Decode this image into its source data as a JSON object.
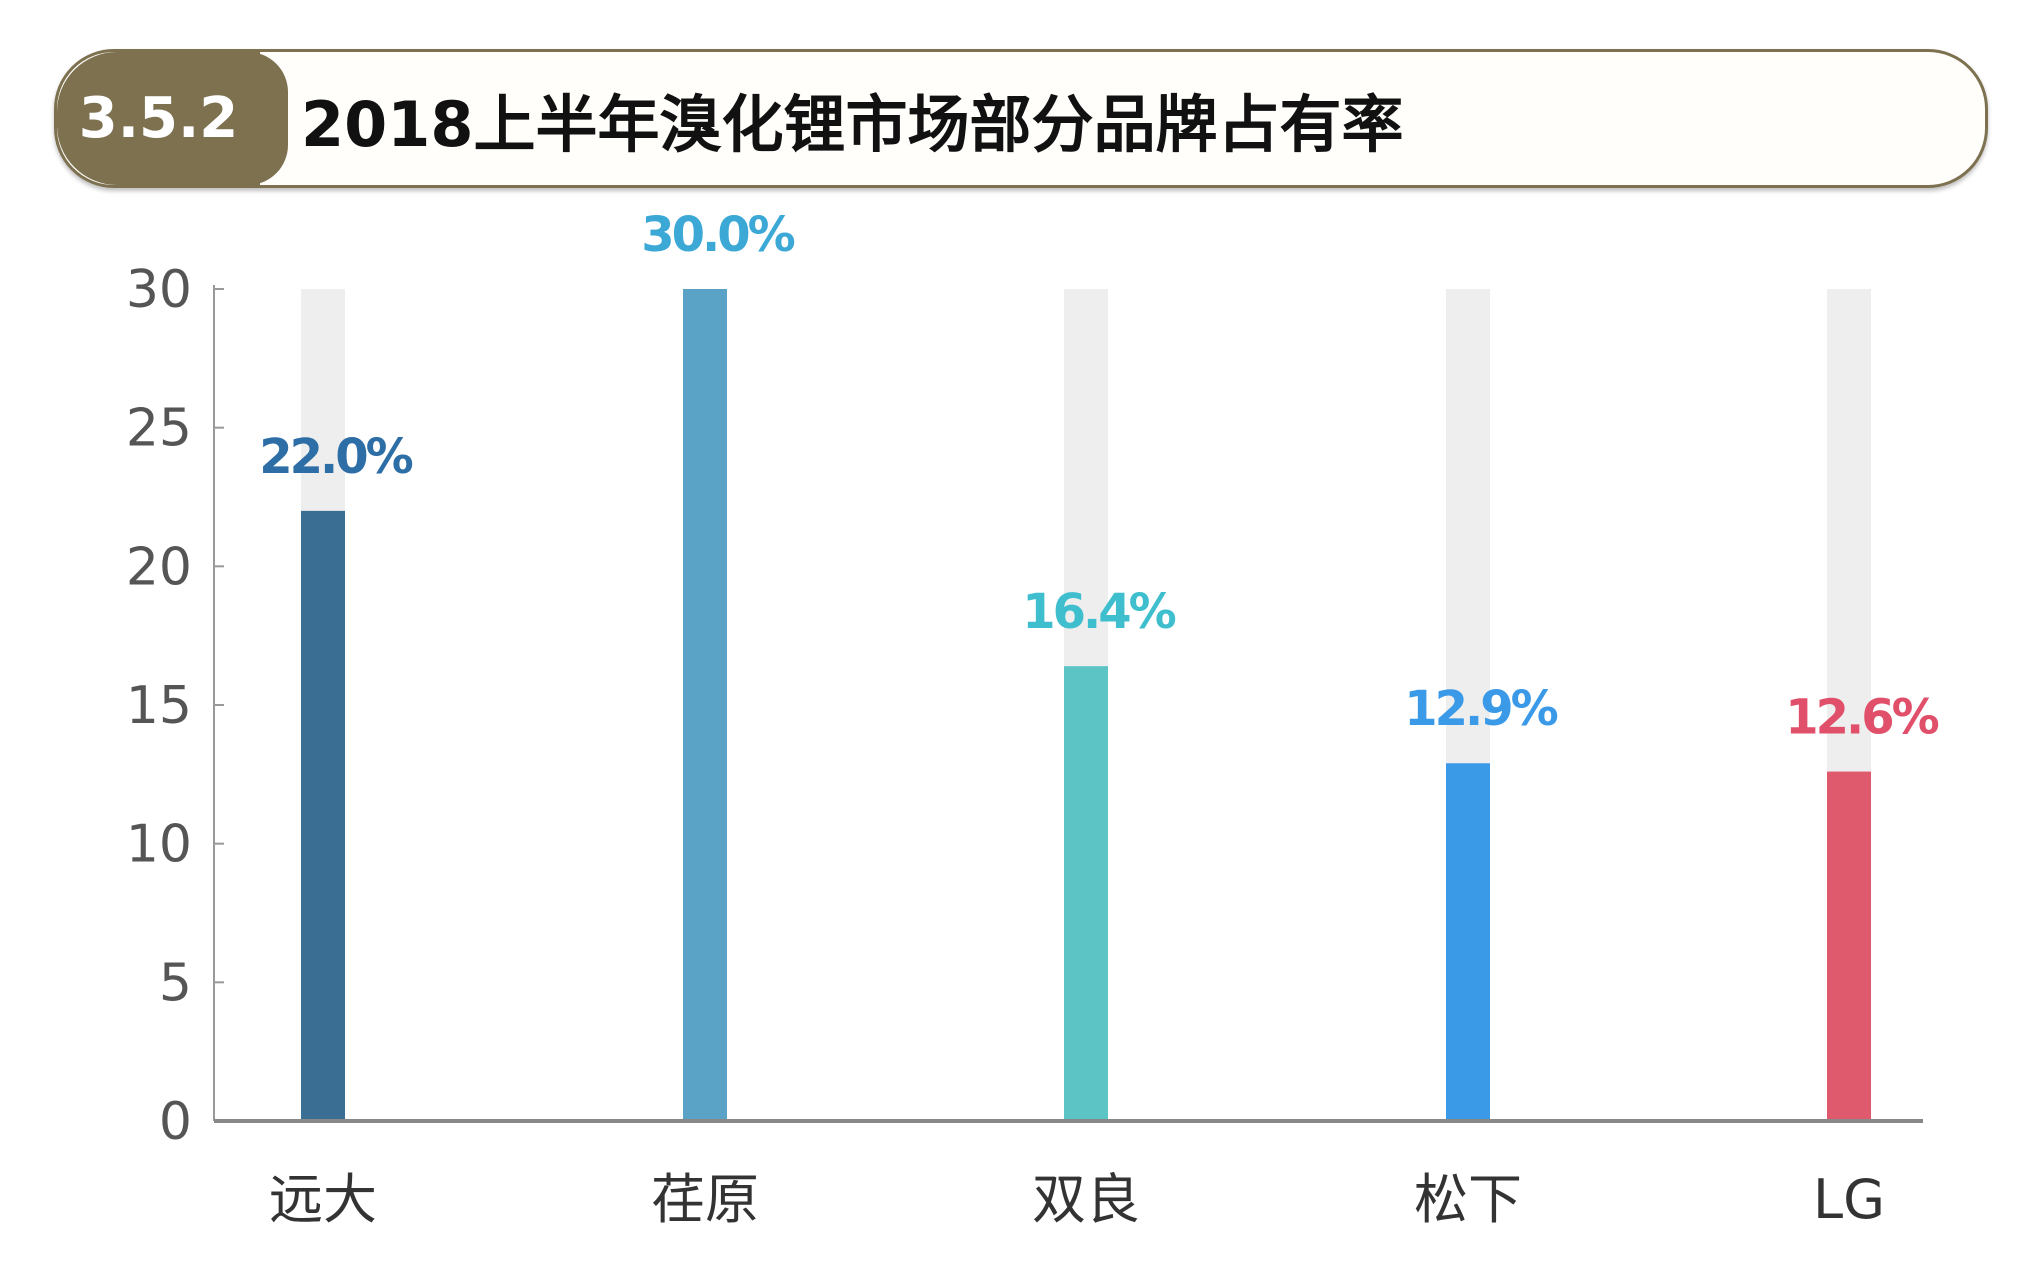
{
  "header": {
    "section_number": "3.5.2",
    "title": "2018上半年溴化锂市场部分品牌占有率"
  },
  "chart_data": {
    "type": "bar",
    "title": "2018上半年溴化锂市场部分品牌占有率",
    "categories": [
      "远大",
      "荏原",
      "双良",
      "松下",
      "LG"
    ],
    "values": [
      22.0,
      30.0,
      16.4,
      12.9,
      12.6
    ],
    "data_labels": [
      "22.0%",
      "30.0%",
      "16.4%",
      "12.9%",
      "12.6%"
    ],
    "colors": [
      "#3a6e93",
      "#5aa3c6",
      "#5cc4c4",
      "#3b9ae8",
      "#e05a6e"
    ],
    "label_colors": [
      "#2e6ea6",
      "#3ba8d6",
      "#3fbfce",
      "#3b9ae8",
      "#e0506a"
    ],
    "background_bar_color": "#eeeeee",
    "ylim": [
      0,
      30
    ],
    "yticks": [
      0,
      5,
      10,
      15,
      20,
      25,
      30
    ],
    "xlabel": "",
    "ylabel": "",
    "grid": false,
    "legend": "none"
  }
}
